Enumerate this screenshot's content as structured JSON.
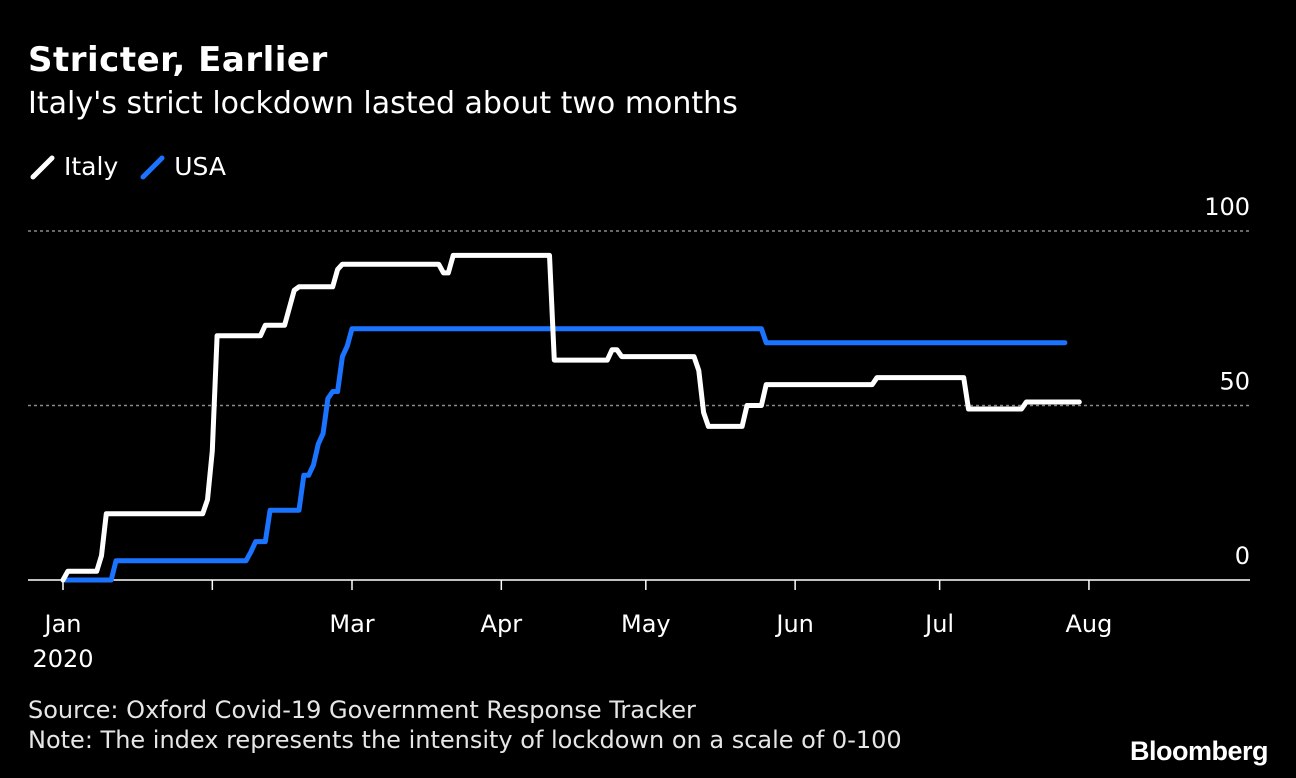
{
  "header": {
    "title": "Stricter, Earlier",
    "subtitle": "Italy's strict lockdown lasted about two months"
  },
  "colors": {
    "italy": "#ffffff",
    "usa": "#1a74ff",
    "grid": "#8a8a8a",
    "axis": "#ffffff"
  },
  "chart_data": {
    "type": "line",
    "title": "Stricter, Earlier",
    "subtitle": "Italy's strict lockdown lasted about two months",
    "xlabel": "",
    "ylabel": "",
    "x_unit": "day of 2020 (0 = Jan 1)",
    "xlim": [
      0,
      240
    ],
    "ylim": [
      0,
      100
    ],
    "yticks": [
      0,
      50,
      100
    ],
    "ytick_labels": [
      "0",
      "50",
      "100"
    ],
    "xticks": [
      0,
      31,
      60,
      91,
      121,
      152,
      182,
      213
    ],
    "xtick_labels": [
      "Jan",
      "Mar",
      "Apr",
      "May",
      "Jun",
      "Jul",
      "Aug"
    ],
    "xtick_label_days": [
      0,
      60,
      91,
      121,
      152,
      182,
      213
    ],
    "first_year_label": "2020",
    "grid": "dotted horizontal at 50 and 100",
    "legend": "top-left",
    "series": [
      {
        "name": "Italy",
        "color": "#ffffff",
        "points": [
          [
            0,
            0
          ],
          [
            1,
            2.5
          ],
          [
            7,
            2.5
          ],
          [
            8,
            7
          ],
          [
            9,
            19
          ],
          [
            29,
            19
          ],
          [
            30,
            23
          ],
          [
            31,
            37
          ],
          [
            32,
            70
          ],
          [
            41,
            70
          ],
          [
            42,
            73
          ],
          [
            46,
            73
          ],
          [
            48,
            83
          ],
          [
            49,
            84
          ],
          [
            56,
            84
          ],
          [
            57,
            89
          ],
          [
            58,
            90.5
          ],
          [
            78,
            90.5
          ],
          [
            79,
            88
          ],
          [
            80,
            88
          ],
          [
            81,
            93
          ],
          [
            101,
            93
          ],
          [
            102,
            63
          ],
          [
            113,
            63
          ],
          [
            114,
            66
          ],
          [
            115,
            66
          ],
          [
            116,
            64
          ],
          [
            131,
            64
          ],
          [
            132,
            60
          ],
          [
            133,
            48
          ],
          [
            134,
            44
          ],
          [
            141,
            44
          ],
          [
            142,
            50
          ],
          [
            145,
            50
          ],
          [
            146,
            56
          ],
          [
            168,
            56
          ],
          [
            169,
            58
          ],
          [
            187,
            58
          ],
          [
            188,
            49
          ],
          [
            199,
            49
          ],
          [
            200,
            51
          ],
          [
            211,
            51
          ]
        ]
      },
      {
        "name": "USA",
        "color": "#1a74ff",
        "points": [
          [
            0,
            0
          ],
          [
            10,
            0
          ],
          [
            11,
            5.5
          ],
          [
            38,
            5.5
          ],
          [
            39,
            8
          ],
          [
            40,
            11
          ],
          [
            42,
            11
          ],
          [
            43,
            20
          ],
          [
            49,
            20
          ],
          [
            50,
            30
          ],
          [
            51,
            30
          ],
          [
            52,
            33
          ],
          [
            53,
            39
          ],
          [
            54,
            42
          ],
          [
            55,
            52
          ],
          [
            56,
            54
          ],
          [
            57,
            54
          ],
          [
            58,
            64
          ],
          [
            59,
            67
          ],
          [
            60,
            72
          ],
          [
            145,
            72
          ],
          [
            146,
            68
          ],
          [
            208,
            68
          ]
        ]
      }
    ]
  },
  "footer": {
    "source": "Source: Oxford Covid-19 Government Response Tracker",
    "note": "Note: The index represents the intensity of lockdown on a scale of 0-100",
    "brand": "Bloomberg"
  }
}
